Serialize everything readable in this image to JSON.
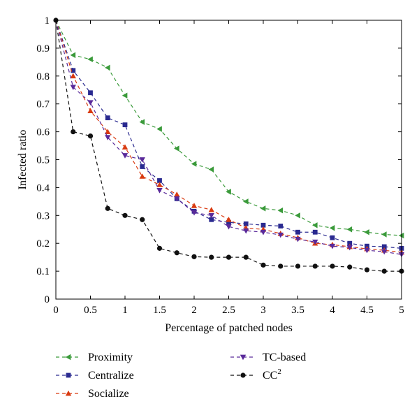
{
  "chart_data": {
    "type": "line",
    "title": "",
    "xlabel": "Percentage of patched nodes",
    "ylabel": "Infected ratio",
    "xlim": [
      0,
      5
    ],
    "ylim": [
      0,
      1
    ],
    "xticks": [
      "0",
      "0.5",
      "1",
      "1.5",
      "2",
      "2.5",
      "3",
      "3.5",
      "4",
      "4.5",
      "5"
    ],
    "yticks": [
      "0",
      "0.1",
      "0.2",
      "0.3",
      "0.4",
      "0.5",
      "0.6",
      "0.7",
      "0.8",
      "0.9",
      "1"
    ],
    "grid": false,
    "x": [
      0,
      0.25,
      0.5,
      0.75,
      1,
      1.25,
      1.5,
      1.75,
      2,
      2.25,
      2.5,
      2.75,
      3,
      3.25,
      3.5,
      3.75,
      4,
      4.25,
      4.5,
      4.75,
      5
    ],
    "series": [
      {
        "name": "Proximity",
        "color": "#3a9a3a",
        "marker": "triangle-left",
        "values": [
          1,
          0.875,
          0.86,
          0.83,
          0.73,
          0.635,
          0.61,
          0.54,
          0.485,
          0.465,
          0.385,
          0.35,
          0.325,
          0.318,
          0.3,
          0.265,
          0.255,
          0.25,
          0.24,
          0.232,
          0.228
        ]
      },
      {
        "name": "Centralize",
        "color": "#2a2a90",
        "marker": "square",
        "values": [
          1,
          0.82,
          0.74,
          0.65,
          0.625,
          0.475,
          0.425,
          0.36,
          0.315,
          0.285,
          0.275,
          0.27,
          0.265,
          0.262,
          0.24,
          0.24,
          0.22,
          0.2,
          0.19,
          0.188,
          0.182
        ]
      },
      {
        "name": "Socialize",
        "color": "#d93a10",
        "marker": "triangle-up",
        "values": [
          1,
          0.8,
          0.675,
          0.6,
          0.545,
          0.44,
          0.41,
          0.375,
          0.335,
          0.32,
          0.285,
          0.255,
          0.25,
          0.235,
          0.22,
          0.2,
          0.195,
          0.188,
          0.18,
          0.175,
          0.168
        ]
      },
      {
        "name": "TC-based",
        "color": "#5a2a9a",
        "marker": "triangle-down",
        "values": [
          1,
          0.76,
          0.705,
          0.58,
          0.515,
          0.5,
          0.39,
          0.36,
          0.31,
          0.3,
          0.26,
          0.245,
          0.24,
          0.23,
          0.215,
          0.205,
          0.19,
          0.185,
          0.175,
          0.17,
          0.16
        ]
      },
      {
        "name": "CC",
        "name_sup": "2",
        "color": "#111111",
        "marker": "circle",
        "values": [
          1,
          0.6,
          0.585,
          0.325,
          0.3,
          0.285,
          0.182,
          0.166,
          0.152,
          0.15,
          0.15,
          0.15,
          0.122,
          0.118,
          0.118,
          0.118,
          0.118,
          0.115,
          0.105,
          0.1,
          0.1
        ]
      }
    ]
  }
}
